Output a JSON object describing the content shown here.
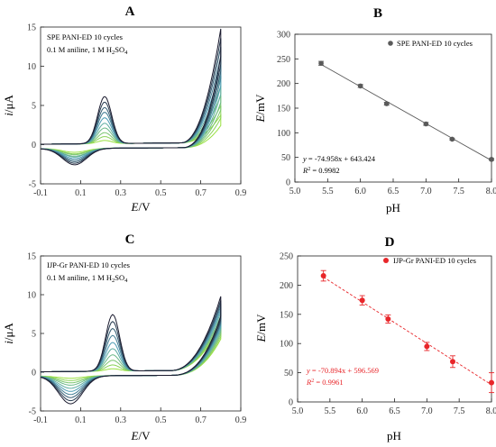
{
  "colors": {
    "panel_b_series": "#5a5a5a",
    "panel_d_series": "#e8262a",
    "cv_first": "#99e040",
    "cv_mid": "#4fa0b8",
    "cv_last": "#1a1a2e"
  },
  "panels": [
    {
      "letter": "A",
      "type": "cyclic-voltammogram",
      "label1": "SPE PANI-ED 10 cycles",
      "label2_pre": "0.1 M aniline, 1 M H",
      "label2_sub": "2",
      "label2_post": "SO",
      "label2_sub2": "4",
      "xlabel_italic": "E",
      "xlabel_unit": "/V",
      "ylabel_italic": "i",
      "ylabel_unit": "/μA",
      "xticks": [
        "-0.1",
        "0.1",
        "0.3",
        "0.5",
        "0.7",
        "0.9"
      ],
      "yticks": [
        "-5",
        "0",
        "5",
        "10",
        "15"
      ]
    },
    {
      "letter": "B",
      "type": "scatter",
      "legend": "SPE PANI-ED 10 cycles",
      "eq_italic_y": "y",
      "eq_rest": " = -74.958x + 643.424",
      "r2_italic": "R",
      "r2_rest": " = 0.9982",
      "xlabel": "pH",
      "ylabel_italic": "E",
      "ylabel_unit": "/mV",
      "xticks": [
        "5.0",
        "5.5",
        "6.0",
        "6.5",
        "7.0",
        "7.5",
        "8.0"
      ],
      "yticks": [
        "0",
        "50",
        "100",
        "150",
        "200",
        "250",
        "300"
      ]
    },
    {
      "letter": "C",
      "type": "cyclic-voltammogram",
      "label1": "IJP-Gr PANI-ED 10 cycles",
      "label2_pre": "0.1 M aniline, 1 M H",
      "label2_sub": "2",
      "label2_post": "SO",
      "label2_sub2": "4",
      "xlabel_italic": "E",
      "xlabel_unit": "/V",
      "ylabel_italic": "i",
      "ylabel_unit": "/μA",
      "xticks": [
        "-0.1",
        "0.1",
        "0.3",
        "0.5",
        "0.7",
        "0.9"
      ],
      "yticks": [
        "-5",
        "0",
        "5",
        "10",
        "15"
      ]
    },
    {
      "letter": "D",
      "type": "scatter",
      "legend": "IJP-Gr PANI-ED 10 cycles",
      "eq_italic_y": "y",
      "eq_rest": " = -70.894x + 596.569",
      "r2_italic": "R",
      "r2_rest": " = 0.9961",
      "xlabel": "pH",
      "ylabel_italic": "E",
      "ylabel_unit": "/mV",
      "xticks": [
        "5.0",
        "5.5",
        "6.0",
        "6.5",
        "7.0",
        "7.5",
        "8.0"
      ],
      "yticks": [
        "0",
        "50",
        "100",
        "150",
        "200",
        "250"
      ]
    }
  ],
  "chart_data": [
    {
      "type": "line",
      "panel": "A",
      "xlim": [
        -0.1,
        0.9
      ],
      "ylim": [
        -5,
        15
      ],
      "cycles": 10,
      "oxidation_peak": {
        "x": 0.22,
        "y_values": [
          0.4,
          0.9,
          1.4,
          2.0,
          2.6,
          3.3,
          4.0,
          4.6,
          5.3,
          6.0
        ]
      },
      "reduction_peak": {
        "x": 0.07,
        "y_values": [
          -0.5,
          -0.7,
          -0.8,
          -1.0,
          -1.1,
          -1.3,
          -1.5,
          -1.7,
          -1.9,
          -2.1
        ]
      },
      "end_current_at_0_8V": [
        3.5,
        4.7,
        6.0,
        7.2,
        8.5,
        9.8,
        11.0,
        12.2,
        13.3,
        14.5
      ]
    },
    {
      "type": "scatter",
      "panel": "B",
      "x": [
        5.4,
        6.0,
        6.4,
        7.0,
        7.4,
        8.0
      ],
      "y": [
        241,
        195,
        159,
        118,
        87,
        46
      ],
      "error": [
        4,
        3,
        3,
        3,
        2,
        2
      ],
      "fit": {
        "slope": -74.958,
        "intercept": 643.424,
        "r2": 0.9982
      },
      "xlabel": "pH",
      "ylabel": "E/mV",
      "xlim": [
        5.0,
        8.0
      ],
      "ylim": [
        0,
        300
      ]
    },
    {
      "type": "line",
      "panel": "C",
      "xlim": [
        -0.1,
        0.9
      ],
      "ylim": [
        -5,
        15
      ],
      "cycles": 10,
      "oxidation_peak": {
        "x": 0.26,
        "y_values": [
          0.3,
          0.8,
          1.4,
          2.1,
          2.9,
          3.7,
          4.6,
          5.5,
          6.4,
          7.3
        ]
      },
      "reduction_peak": {
        "x": 0.05,
        "y_values": [
          -0.3,
          -0.6,
          -0.9,
          -1.2,
          -1.6,
          -2.0,
          -2.4,
          -2.8,
          -3.2,
          -3.6
        ]
      },
      "end_current_at_0_8V": [
        5.8,
        6.2,
        6.6,
        7.0,
        7.4,
        7.8,
        8.2,
        8.6,
        9.0,
        9.5
      ]
    },
    {
      "type": "scatter",
      "panel": "D",
      "x": [
        5.4,
        6.0,
        6.4,
        7.0,
        7.4,
        8.0
      ],
      "y": [
        216,
        174,
        142,
        95,
        69,
        33
      ],
      "error": [
        9,
        8,
        7,
        7,
        10,
        17
      ],
      "fit": {
        "slope": -70.894,
        "intercept": 596.569,
        "r2": 0.9961
      },
      "xlabel": "pH",
      "ylabel": "E/mV",
      "xlim": [
        5.0,
        8.0
      ],
      "ylim": [
        0,
        250
      ]
    }
  ]
}
